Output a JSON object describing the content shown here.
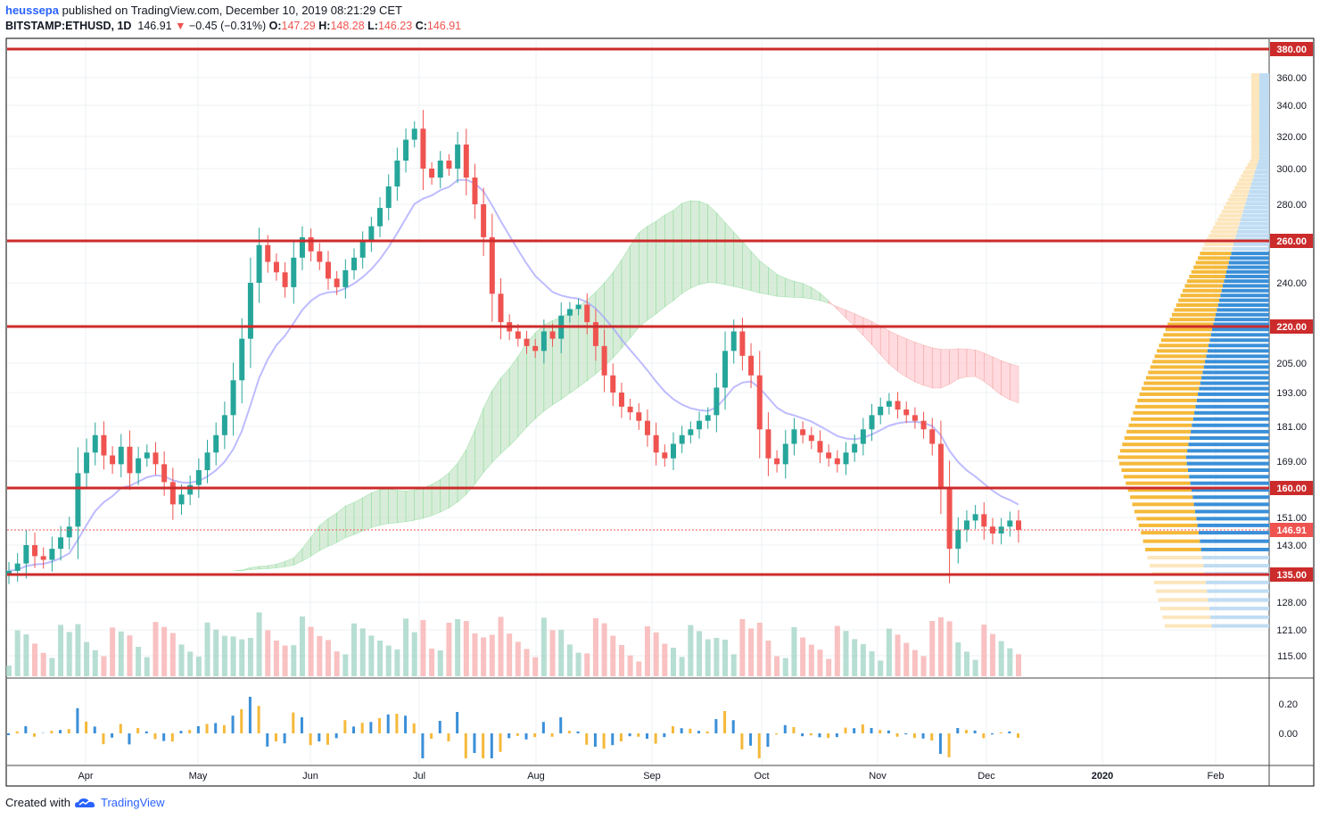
{
  "header": {
    "author": "heussepa",
    "published": "published on TradingView.com, December 10, 2019 08:21:29 CET",
    "symbol": "BITSTAMP:ETHUSD, 1D",
    "price": "146.91",
    "change": "−0.45 (−0.31%)",
    "o_label": "O:",
    "o": "147.29",
    "h_label": "H:",
    "h": "148.28",
    "l_label": "L:",
    "l": "146.23",
    "c_label": "C:",
    "c": "146.91"
  },
  "footer": {
    "created_with": "Created with",
    "brand": "TradingView"
  },
  "colors": {
    "up": "#26a69a",
    "down": "#ef5350",
    "level": "#cc2b2b",
    "baseline": "#a3a0ff",
    "cloud_bull": "#c8e6c9",
    "cloud_bear": "#ffcdd2",
    "vp_up": "#3a8fd8",
    "vp_down": "#f5b93a"
  },
  "chart_data": {
    "type": "candlestick",
    "title": "",
    "x_labels": [
      "Apr",
      "May",
      "Jun",
      "Jul",
      "Aug",
      "Sep",
      "Oct",
      "Nov",
      "Dec",
      "2020",
      "Feb"
    ],
    "y_ticks": [
      "360.00",
      "340.00",
      "320.00",
      "300.00",
      "280.00",
      "240.00",
      "205.00",
      "193.00",
      "181.00",
      "169.00",
      "151.00",
      "143.00",
      "128.00",
      "121.00",
      "115.00"
    ],
    "horizontal_levels": [
      "380.00",
      "260.00",
      "220.00",
      "160.00",
      "135.00"
    ],
    "last_price": "146.91",
    "oscillator_ticks": [
      "0.20",
      "0.00"
    ],
    "close_series": [
      136,
      138,
      143,
      140,
      139,
      142,
      145,
      148,
      165,
      172,
      178,
      171,
      168,
      174,
      165,
      170,
      172,
      168,
      162,
      155,
      158,
      161,
      166,
      172,
      178,
      185,
      198,
      215,
      240,
      258,
      250,
      245,
      238,
      252,
      262,
      255,
      250,
      242,
      238,
      246,
      252,
      260,
      268,
      278,
      290,
      305,
      318,
      325,
      300,
      295,
      305,
      300,
      315,
      295,
      280,
      262,
      235,
      222,
      218,
      215,
      212,
      210,
      218,
      215,
      225,
      228,
      230,
      222,
      212,
      200,
      193,
      188,
      186,
      183,
      178,
      172,
      170,
      175,
      178,
      180,
      183,
      185,
      195,
      210,
      218,
      208,
      200,
      180,
      170,
      168,
      175,
      180,
      178,
      176,
      172,
      170,
      168,
      172,
      175,
      180,
      185,
      188,
      190,
      187,
      185,
      183,
      180,
      175,
      160,
      142,
      147,
      150,
      152,
      148,
      146,
      148,
      150,
      146.91
    ],
    "volume_profile_max_price": 362,
    "volume_profile_min_price": 122
  }
}
